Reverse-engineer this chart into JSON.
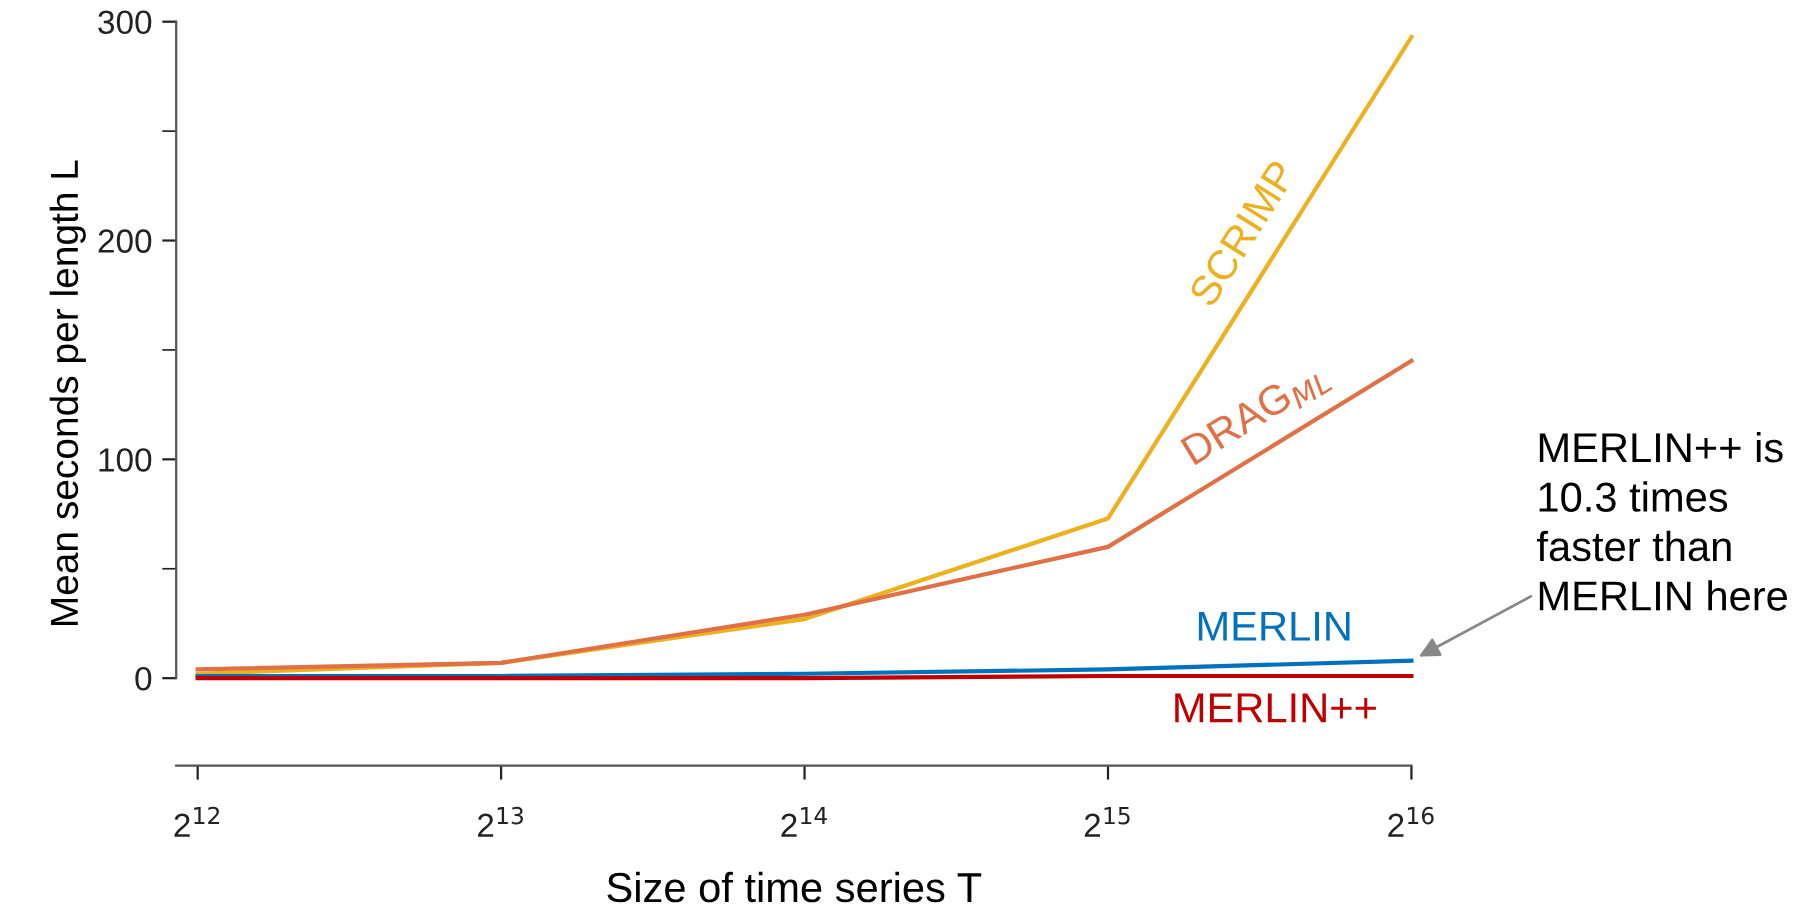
{
  "chart_data": {
    "type": "line",
    "xlabel": "Size of time series T",
    "ylabel": "Mean seconds per length L",
    "x": [
      4096,
      8192,
      16384,
      32768,
      65536
    ],
    "log": "x",
    "xlim": [
      3900,
      65536
    ],
    "ylim": [
      -40,
      300
    ],
    "xticks": [
      {
        "value": 4096,
        "label": "2$^{12}$"
      },
      {
        "value": 8192,
        "label": "2$^{13}$"
      },
      {
        "value": 16384,
        "label": "2$^{14}$"
      },
      {
        "value": 32768,
        "label": "2$^{15}$"
      },
      {
        "value": 65536,
        "label": "2$^{16}$"
      }
    ],
    "yticks": [
      0,
      {
        "value": 50,
        "label": null
      },
      100,
      {
        "value": 150,
        "label": null
      },
      200,
      {
        "value": 250,
        "label": null
      },
      300
    ],
    "series": [
      {
        "name": "SCRIMP",
        "color": "#edb120",
        "values": [
          2,
          7,
          27,
          73,
          293
        ]
      },
      {
        "name": "DRAG$_{ML}$",
        "color": "#e07045",
        "values": [
          4,
          7,
          29,
          60,
          145
        ]
      },
      {
        "name": "MERLIN",
        "color": "#0072bd",
        "values": [
          1,
          1,
          2,
          4,
          8
        ]
      },
      {
        "name": "MERLIN++",
        "color": "#c00000",
        "values": [
          0,
          0,
          0,
          1,
          1
        ]
      }
    ],
    "annotations": [
      {
        "text": "MERLIN++ is\n10.3 times\nfaster than\nMERLIN here",
        "x": 65536,
        "y": 8
      }
    ],
    "grid": false,
    "legend": false,
    "marker": "none",
    "line_style": "solid"
  }
}
